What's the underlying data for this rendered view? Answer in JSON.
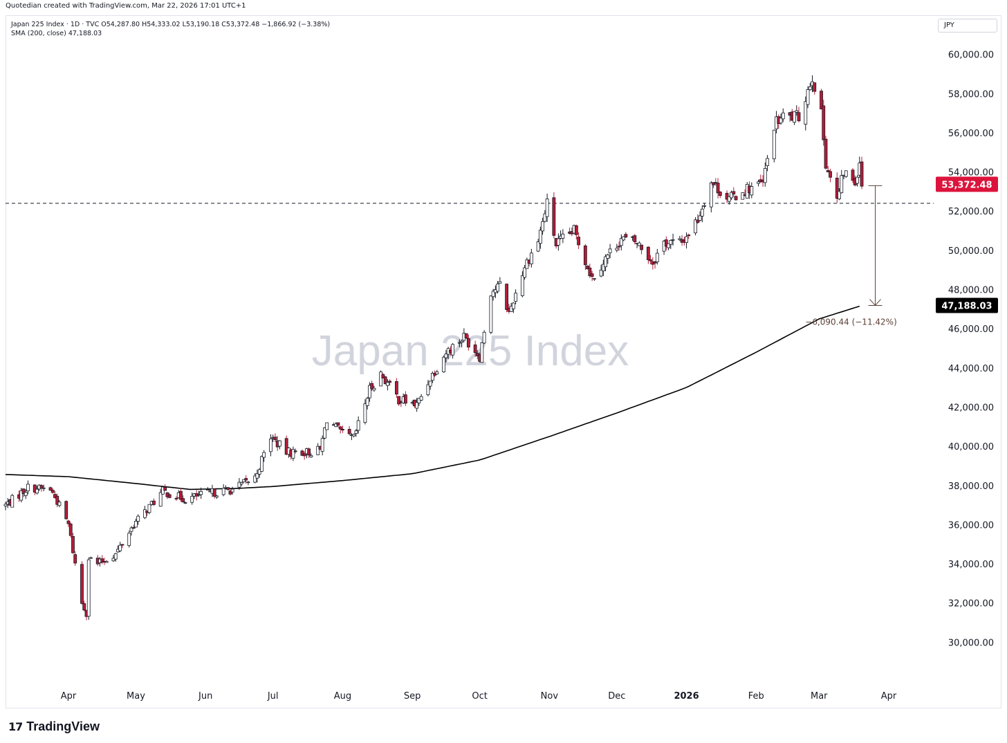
{
  "header": {
    "caption": "Quotedian created with TradingView.com, Mar 22, 2026 17:01 UTC+1"
  },
  "legend": {
    "symbol_line": "Japan 225 Index · 1D · TVC  O54,287.80  H54,333.02  L53,190.18  C53,372.48  −1,866.92 (−3.38%)",
    "sma_line": "SMA (200, close)  47,188.03"
  },
  "currency_button": "JPY",
  "watermark": "Japan 225 Index",
  "brand": {
    "mark": "17",
    "name": "TradingView"
  },
  "colors": {
    "up": "#ffffff",
    "down": "#b71c38",
    "wick": "#131722",
    "sma": "#000000",
    "price_tag": "#dc143c",
    "sma_tag": "#000000"
  },
  "chart_data": {
    "type": "candlestick",
    "ylim": [
      28000,
      62000
    ],
    "y_ticks": [
      30000,
      32000,
      34000,
      36000,
      38000,
      40000,
      42000,
      44000,
      46000,
      48000,
      50000,
      52000,
      54000,
      56000,
      58000,
      60000
    ],
    "y_tick_labels": [
      "30,000.00",
      "32,000.00",
      "34,000.00",
      "36,000.00",
      "38,000.00",
      "40,000.00",
      "42,000.00",
      "44,000.00",
      "46,000.00",
      "48,000.00",
      "50,000.00",
      "52,000.00",
      "54,000.00",
      "56,000.00",
      "58,000.00",
      "60,000.00"
    ],
    "x_labels": [
      "Apr",
      "May",
      "Jun",
      "Jul",
      "Aug",
      "Sep",
      "Oct",
      "Nov",
      "Dec",
      "2026",
      "Feb",
      "Mar",
      "Apr"
    ],
    "x_label_dates": [
      "2025-04-01",
      "2025-05-01",
      "2025-06-01",
      "2025-07-01",
      "2025-08-01",
      "2025-09-01",
      "2025-10-01",
      "2025-11-01",
      "2025-12-01",
      "2026-01-01",
      "2026-02-01",
      "2026-03-01",
      "2026-04-01"
    ],
    "x_range": [
      "2025-03-04",
      "2026-04-21"
    ],
    "horizontal_line": 52400,
    "last_price": 53372.48,
    "last_price_label": "53,372.48",
    "sma_value": 47188.03,
    "sma_label": "47,188.03",
    "measure": {
      "from": 53300,
      "to": 47188,
      "date": "2026-03-26",
      "label": "−6,090.44 (−11.42%)"
    },
    "keypoints": [
      [
        "2025-03-04",
        37000
      ],
      [
        "2025-03-14",
        37900
      ],
      [
        "2025-03-24",
        37800
      ],
      [
        "2025-03-27",
        37200
      ],
      [
        "2025-04-01",
        36000
      ],
      [
        "2025-04-04",
        34000
      ],
      [
        "2025-04-07",
        32000
      ],
      [
        "2025-04-09",
        31500
      ],
      [
        "2025-04-10",
        34300
      ],
      [
        "2025-04-14",
        34000
      ],
      [
        "2025-04-22",
        34500
      ],
      [
        "2025-04-30",
        36000
      ],
      [
        "2025-05-13",
        37700
      ],
      [
        "2025-05-23",
        37300
      ],
      [
        "2025-06-02",
        37600
      ],
      [
        "2025-06-13",
        37800
      ],
      [
        "2025-06-23",
        38400
      ],
      [
        "2025-06-30",
        40500
      ],
      [
        "2025-07-07",
        39700
      ],
      [
        "2025-07-17",
        39700
      ],
      [
        "2025-07-22",
        39800
      ],
      [
        "2025-07-25",
        41400
      ],
      [
        "2025-08-01",
        40600
      ],
      [
        "2025-08-06",
        40400
      ],
      [
        "2025-08-13",
        42900
      ],
      [
        "2025-08-18",
        43700
      ],
      [
        "2025-08-26",
        42400
      ],
      [
        "2025-09-03",
        42100
      ],
      [
        "2025-09-09",
        43500
      ],
      [
        "2025-09-16",
        44800
      ],
      [
        "2025-09-24",
        45600
      ],
      [
        "2025-10-01",
        44600
      ],
      [
        "2025-10-06",
        47900
      ],
      [
        "2025-10-10",
        48200
      ],
      [
        "2025-10-14",
        46800
      ],
      [
        "2025-10-21",
        49200
      ],
      [
        "2025-10-27",
        50500
      ],
      [
        "2025-10-31",
        52400
      ],
      [
        "2025-11-04",
        50300
      ],
      [
        "2025-11-12",
        51000
      ],
      [
        "2025-11-20",
        48600
      ],
      [
        "2025-11-26",
        49600
      ],
      [
        "2025-12-03",
        50600
      ],
      [
        "2025-12-10",
        50400
      ],
      [
        "2025-12-17",
        49400
      ],
      [
        "2025-12-22",
        50400
      ],
      [
        "2025-12-30",
        50400
      ],
      [
        "2026-01-06",
        51600
      ],
      [
        "2026-01-12",
        53500
      ],
      [
        "2026-01-20",
        52600
      ],
      [
        "2026-01-27",
        53100
      ],
      [
        "2026-02-04",
        53400
      ],
      [
        "2026-02-09",
        56400
      ],
      [
        "2026-02-13",
        56800
      ],
      [
        "2026-02-20",
        56800
      ],
      [
        "2026-02-26",
        58900
      ],
      [
        "2026-03-02",
        56900
      ],
      [
        "2026-03-04",
        54500
      ],
      [
        "2026-03-09",
        52500
      ],
      [
        "2026-03-12",
        54000
      ],
      [
        "2026-03-17",
        53500
      ],
      [
        "2026-03-19",
        54600
      ],
      [
        "2026-03-20",
        53372
      ]
    ],
    "sma_keypoints": [
      [
        "2025-03-04",
        38560
      ],
      [
        "2025-04-01",
        38450
      ],
      [
        "2025-05-01",
        38100
      ],
      [
        "2025-05-25",
        37800
      ],
      [
        "2025-06-15",
        37850
      ],
      [
        "2025-07-01",
        37950
      ],
      [
        "2025-08-01",
        38250
      ],
      [
        "2025-09-01",
        38600
      ],
      [
        "2025-10-01",
        39300
      ],
      [
        "2025-11-01",
        40500
      ],
      [
        "2025-12-01",
        41700
      ],
      [
        "2026-01-01",
        43000
      ],
      [
        "2026-02-01",
        44800
      ],
      [
        "2026-03-01",
        46500
      ],
      [
        "2026-03-20",
        47188
      ]
    ]
  }
}
